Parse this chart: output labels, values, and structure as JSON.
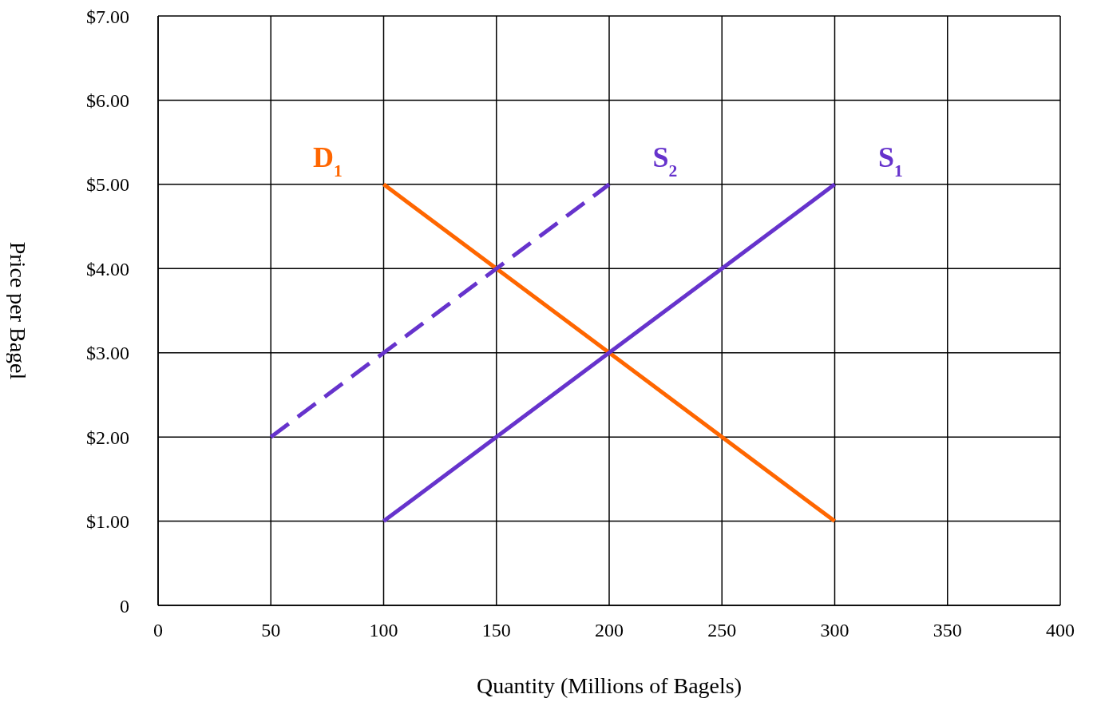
{
  "chart_data": {
    "type": "line",
    "xlabel": "Quantity (Millions of Bagels)",
    "ylabel": "Price per Bagel",
    "xlim": [
      0,
      400
    ],
    "xticks": [
      0,
      50,
      100,
      150,
      200,
      250,
      300,
      350,
      400
    ],
    "ylim": [
      0,
      7
    ],
    "yticks": [
      0,
      {
        "value": 1,
        "label": "$1.00"
      },
      {
        "value": 2,
        "label": "$2.00"
      },
      {
        "value": 3,
        "label": "$3.00"
      },
      {
        "value": 4,
        "label": "$4.00"
      },
      {
        "value": 5,
        "label": "$5.00"
      },
      {
        "value": 6,
        "label": "$6.00"
      },
      {
        "value": 7,
        "label": "$7.00"
      }
    ],
    "grid": true,
    "marker": "none",
    "series": [
      {
        "name": "D$_{1}$",
        "color": "#ff6600",
        "x": [
          100,
          300
        ],
        "values": [
          5,
          1
        ],
        "line_style": "solid"
      },
      {
        "name": "S$_{2}$",
        "color": "#6633cc",
        "x": [
          50,
          200
        ],
        "values": [
          2,
          5
        ],
        "line_style": "dashed"
      },
      {
        "name": "S$_{1}$",
        "color": "#6633cc",
        "x": [
          100,
          300
        ],
        "values": [
          1,
          5
        ],
        "line_style": "solid"
      }
    ]
  }
}
